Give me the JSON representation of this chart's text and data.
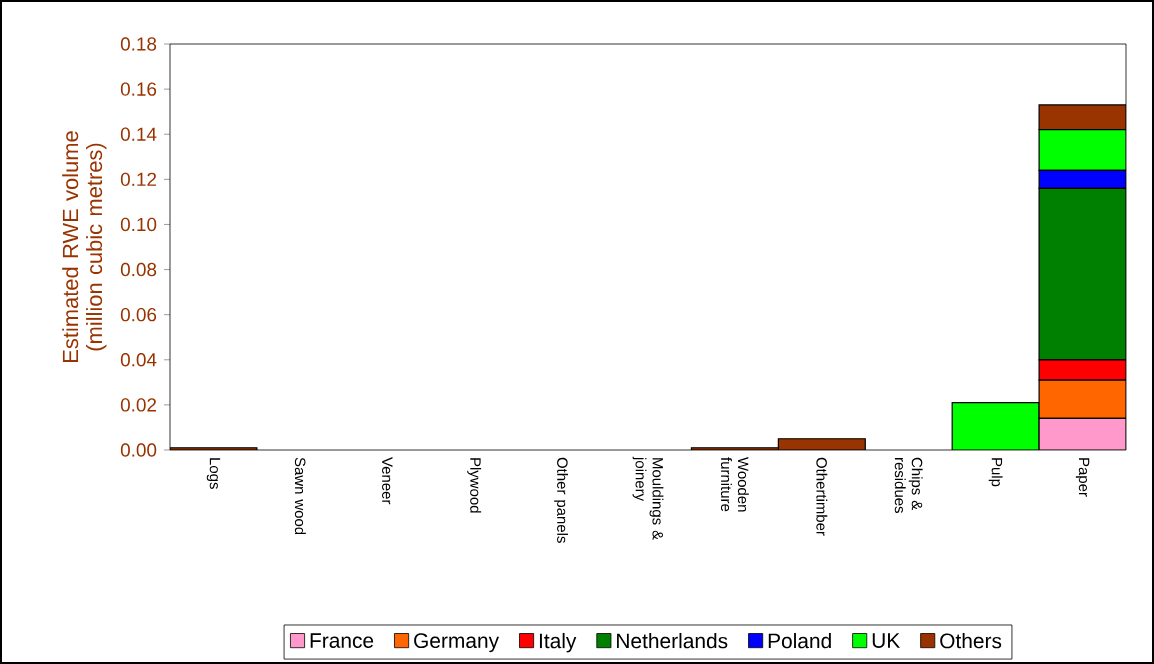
{
  "chart_data": {
    "type": "bar",
    "stacked": true,
    "ylabel": "Estimated RWE volume (million cubic metres)",
    "categories": [
      "Logs",
      "Sawn wood",
      "Veneer",
      "Plywood",
      "Other panels",
      "Mouldings & joinery",
      "Wooden furniture",
      "Othertimber",
      "Chips & residues",
      "Pulp",
      "Paper"
    ],
    "series": [
      {
        "name": "France",
        "color": "#ff99cc",
        "values": [
          null,
          null,
          null,
          null,
          null,
          null,
          null,
          null,
          null,
          null,
          0.014
        ]
      },
      {
        "name": "Germany",
        "color": "#ff6600",
        "values": [
          null,
          null,
          null,
          null,
          null,
          null,
          null,
          null,
          null,
          null,
          0.017
        ]
      },
      {
        "name": "Italy",
        "color": "#ff0000",
        "values": [
          null,
          null,
          null,
          null,
          null,
          null,
          null,
          null,
          null,
          null,
          0.009
        ]
      },
      {
        "name": "Netherlands",
        "color": "#008000",
        "values": [
          null,
          null,
          null,
          null,
          null,
          null,
          null,
          null,
          null,
          null,
          0.076
        ]
      },
      {
        "name": "Poland",
        "color": "#0000ff",
        "values": [
          null,
          null,
          null,
          null,
          null,
          null,
          null,
          null,
          null,
          null,
          0.008
        ]
      },
      {
        "name": "UK",
        "color": "#00ff00",
        "values": [
          null,
          null,
          null,
          null,
          null,
          null,
          null,
          null,
          null,
          0.021,
          0.018
        ]
      },
      {
        "name": "Others",
        "color": "#993300",
        "values": [
          0.001,
          null,
          null,
          null,
          null,
          null,
          0.001,
          0.005,
          null,
          null,
          0.011
        ]
      }
    ],
    "ylim": [
      0,
      0.18
    ],
    "yticks": [
      {
        "value": 0,
        "label": "0.00"
      },
      {
        "value": 0.02,
        "label": "0.02"
      },
      {
        "value": 0.04,
        "label": "0.04"
      },
      {
        "value": 0.06,
        "label": "0.06"
      },
      {
        "value": 0.08,
        "label": "0.08"
      },
      {
        "value": 0.1,
        "label": "0.10"
      },
      {
        "value": 0.12,
        "label": "0.12"
      },
      {
        "value": 0.14,
        "label": "0.14"
      },
      {
        "value": 0.16,
        "label": "0.16"
      },
      {
        "value": 0.18,
        "label": "0.18"
      }
    ],
    "grid": false,
    "legend": "bottom"
  }
}
